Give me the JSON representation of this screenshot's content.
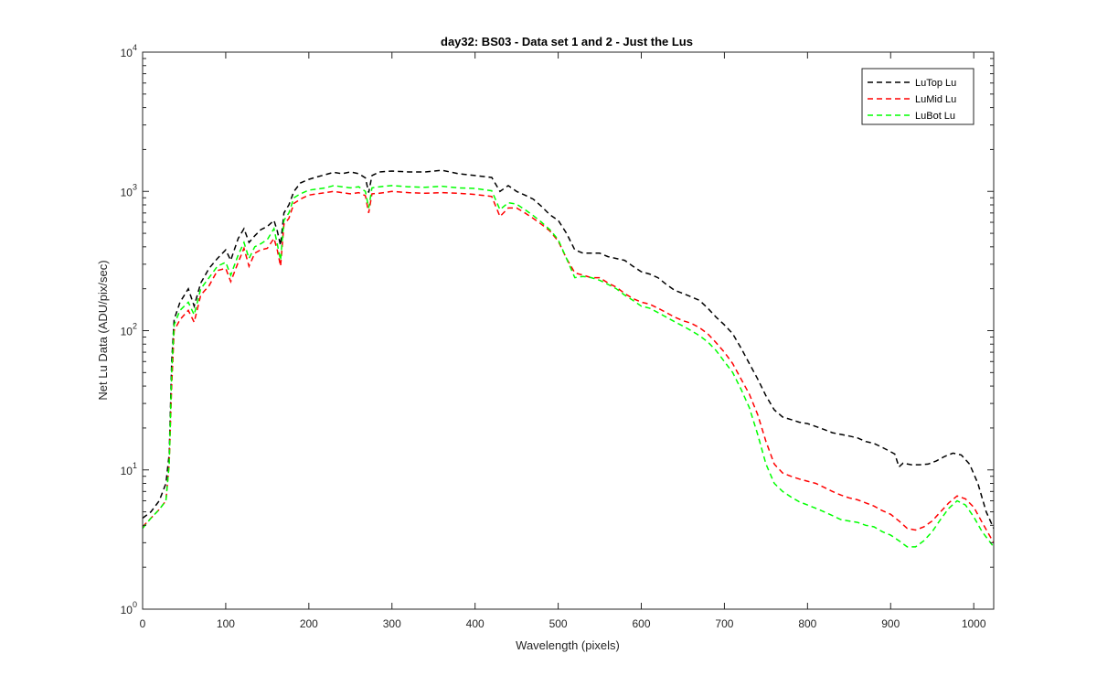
{
  "chart_data": {
    "type": "line",
    "title": "day32: BS03 - Data set 1 and 2 - Just the Lus",
    "xlabel": "Wavelength (pixels)",
    "ylabel": "Net Lu Data (ADU/pix/sec)",
    "xlim": [
      0,
      1024
    ],
    "ylim": [
      1,
      10000
    ],
    "yscale": "log",
    "x_ticks": [
      0,
      100,
      200,
      300,
      400,
      500,
      600,
      700,
      800,
      900,
      1000
    ],
    "x_tick_labels": [
      "0",
      "100",
      "200",
      "300",
      "400",
      "500",
      "600",
      "700",
      "800",
      "900",
      "1000"
    ],
    "y_ticks": [
      1,
      10,
      100,
      1000,
      10000
    ],
    "y_tick_labels": [
      {
        "base": "10",
        "exp": "0"
      },
      {
        "base": "10",
        "exp": "1"
      },
      {
        "base": "10",
        "exp": "2"
      },
      {
        "base": "10",
        "exp": "3"
      },
      {
        "base": "10",
        "exp": "4"
      }
    ],
    "grid": false,
    "legend_position": "top-right",
    "line_style": "dashed",
    "series": [
      {
        "name": "LuTop  Lu",
        "color": "#000000",
        "points": [
          [
            0,
            4.5
          ],
          [
            10,
            5
          ],
          [
            20,
            6
          ],
          [
            28,
            8
          ],
          [
            32,
            13
          ],
          [
            35,
            60
          ],
          [
            38,
            120
          ],
          [
            45,
            160
          ],
          [
            55,
            200
          ],
          [
            62,
            150
          ],
          [
            70,
            220
          ],
          [
            80,
            280
          ],
          [
            90,
            330
          ],
          [
            100,
            380
          ],
          [
            106,
            320
          ],
          [
            115,
            460
          ],
          [
            122,
            540
          ],
          [
            128,
            430
          ],
          [
            135,
            480
          ],
          [
            142,
            530
          ],
          [
            150,
            560
          ],
          [
            158,
            620
          ],
          [
            162,
            520
          ],
          [
            166,
            410
          ],
          [
            170,
            700
          ],
          [
            176,
            800
          ],
          [
            182,
            1000
          ],
          [
            190,
            1150
          ],
          [
            200,
            1220
          ],
          [
            210,
            1270
          ],
          [
            220,
            1320
          ],
          [
            230,
            1370
          ],
          [
            240,
            1340
          ],
          [
            250,
            1380
          ],
          [
            260,
            1340
          ],
          [
            268,
            1250
          ],
          [
            272,
            980
          ],
          [
            276,
            1300
          ],
          [
            285,
            1380
          ],
          [
            300,
            1400
          ],
          [
            320,
            1380
          ],
          [
            340,
            1380
          ],
          [
            360,
            1420
          ],
          [
            380,
            1340
          ],
          [
            400,
            1300
          ],
          [
            420,
            1260
          ],
          [
            430,
            1000
          ],
          [
            440,
            1100
          ],
          [
            450,
            1000
          ],
          [
            460,
            940
          ],
          [
            470,
            880
          ],
          [
            480,
            780
          ],
          [
            490,
            680
          ],
          [
            500,
            620
          ],
          [
            510,
            500
          ],
          [
            520,
            380
          ],
          [
            530,
            360
          ],
          [
            540,
            360
          ],
          [
            550,
            360
          ],
          [
            560,
            340
          ],
          [
            570,
            330
          ],
          [
            580,
            320
          ],
          [
            590,
            290
          ],
          [
            600,
            265
          ],
          [
            610,
            255
          ],
          [
            620,
            240
          ],
          [
            630,
            215
          ],
          [
            640,
            195
          ],
          [
            650,
            185
          ],
          [
            660,
            175
          ],
          [
            670,
            165
          ],
          [
            680,
            145
          ],
          [
            690,
            125
          ],
          [
            700,
            110
          ],
          [
            710,
            95
          ],
          [
            720,
            75
          ],
          [
            730,
            58
          ],
          [
            740,
            45
          ],
          [
            750,
            34
          ],
          [
            760,
            27
          ],
          [
            770,
            24
          ],
          [
            780,
            23
          ],
          [
            790,
            22
          ],
          [
            800,
            21.5
          ],
          [
            810,
            20.5
          ],
          [
            820,
            19.5
          ],
          [
            830,
            18.5
          ],
          [
            840,
            18
          ],
          [
            850,
            17.5
          ],
          [
            860,
            17
          ],
          [
            870,
            16
          ],
          [
            880,
            15.5
          ],
          [
            890,
            14.5
          ],
          [
            900,
            13.5
          ],
          [
            905,
            13
          ],
          [
            910,
            10.5
          ],
          [
            915,
            11.2
          ],
          [
            925,
            10.9
          ],
          [
            935,
            10.9
          ],
          [
            945,
            11
          ],
          [
            955,
            11.6
          ],
          [
            965,
            12.5
          ],
          [
            975,
            13.2
          ],
          [
            985,
            12.8
          ],
          [
            995,
            11
          ],
          [
            1005,
            8
          ],
          [
            1015,
            5
          ],
          [
            1024,
            3.8
          ]
        ]
      },
      {
        "name": "LuMid  Lu",
        "color": "#ff0000",
        "points": [
          [
            0,
            3.9
          ],
          [
            10,
            4.5
          ],
          [
            20,
            5.2
          ],
          [
            28,
            6
          ],
          [
            32,
            11
          ],
          [
            35,
            40
          ],
          [
            38,
            100
          ],
          [
            45,
            120
          ],
          [
            55,
            140
          ],
          [
            62,
            115
          ],
          [
            70,
            180
          ],
          [
            80,
            210
          ],
          [
            90,
            270
          ],
          [
            100,
            280
          ],
          [
            106,
            225
          ],
          [
            115,
            310
          ],
          [
            122,
            390
          ],
          [
            128,
            290
          ],
          [
            135,
            360
          ],
          [
            142,
            380
          ],
          [
            150,
            390
          ],
          [
            158,
            460
          ],
          [
            162,
            380
          ],
          [
            166,
            290
          ],
          [
            170,
            580
          ],
          [
            176,
            640
          ],
          [
            182,
            820
          ],
          [
            190,
            880
          ],
          [
            200,
            940
          ],
          [
            210,
            960
          ],
          [
            220,
            980
          ],
          [
            230,
            1000
          ],
          [
            240,
            980
          ],
          [
            250,
            960
          ],
          [
            260,
            980
          ],
          [
            268,
            930
          ],
          [
            272,
            700
          ],
          [
            276,
            960
          ],
          [
            285,
            970
          ],
          [
            300,
            1000
          ],
          [
            320,
            980
          ],
          [
            340,
            970
          ],
          [
            360,
            980
          ],
          [
            380,
            970
          ],
          [
            400,
            950
          ],
          [
            420,
            920
          ],
          [
            430,
            660
          ],
          [
            440,
            760
          ],
          [
            450,
            760
          ],
          [
            460,
            700
          ],
          [
            470,
            640
          ],
          [
            480,
            580
          ],
          [
            490,
            520
          ],
          [
            500,
            440
          ],
          [
            510,
            330
          ],
          [
            520,
            260
          ],
          [
            530,
            250
          ],
          [
            540,
            240
          ],
          [
            550,
            240
          ],
          [
            560,
            220
          ],
          [
            570,
            205
          ],
          [
            580,
            185
          ],
          [
            590,
            170
          ],
          [
            600,
            160
          ],
          [
            610,
            155
          ],
          [
            620,
            145
          ],
          [
            630,
            135
          ],
          [
            640,
            125
          ],
          [
            650,
            118
          ],
          [
            660,
            113
          ],
          [
            670,
            105
          ],
          [
            680,
            95
          ],
          [
            690,
            82
          ],
          [
            700,
            70
          ],
          [
            710,
            58
          ],
          [
            720,
            45
          ],
          [
            730,
            35
          ],
          [
            740,
            25
          ],
          [
            750,
            16
          ],
          [
            760,
            11
          ],
          [
            770,
            9.5
          ],
          [
            780,
            9
          ],
          [
            790,
            8.6
          ],
          [
            800,
            8.3
          ],
          [
            810,
            8
          ],
          [
            820,
            7.5
          ],
          [
            830,
            7
          ],
          [
            840,
            6.6
          ],
          [
            850,
            6.3
          ],
          [
            860,
            6.1
          ],
          [
            870,
            5.8
          ],
          [
            880,
            5.5
          ],
          [
            890,
            5.1
          ],
          [
            900,
            4.8
          ],
          [
            910,
            4.3
          ],
          [
            920,
            3.8
          ],
          [
            930,
            3.7
          ],
          [
            940,
            3.9
          ],
          [
            950,
            4.3
          ],
          [
            960,
            5
          ],
          [
            970,
            5.8
          ],
          [
            980,
            6.5
          ],
          [
            990,
            6.2
          ],
          [
            1000,
            5.4
          ],
          [
            1010,
            4.2
          ],
          [
            1024,
            3
          ]
        ]
      },
      {
        "name": "LuBot  Lu",
        "color": "#00ff00",
        "points": [
          [
            0,
            3.8
          ],
          [
            10,
            4.5
          ],
          [
            20,
            5.2
          ],
          [
            28,
            6
          ],
          [
            32,
            11
          ],
          [
            35,
            50
          ],
          [
            38,
            110
          ],
          [
            45,
            140
          ],
          [
            55,
            160
          ],
          [
            62,
            130
          ],
          [
            70,
            200
          ],
          [
            80,
            240
          ],
          [
            90,
            290
          ],
          [
            100,
            310
          ],
          [
            106,
            250
          ],
          [
            115,
            350
          ],
          [
            122,
            430
          ],
          [
            128,
            330
          ],
          [
            135,
            400
          ],
          [
            142,
            420
          ],
          [
            150,
            450
          ],
          [
            158,
            540
          ],
          [
            162,
            420
          ],
          [
            166,
            320
          ],
          [
            170,
            620
          ],
          [
            176,
            700
          ],
          [
            182,
            900
          ],
          [
            190,
            960
          ],
          [
            200,
            1020
          ],
          [
            210,
            1040
          ],
          [
            220,
            1060
          ],
          [
            230,
            1100
          ],
          [
            240,
            1080
          ],
          [
            250,
            1060
          ],
          [
            260,
            1080
          ],
          [
            268,
            1000
          ],
          [
            272,
            760
          ],
          [
            276,
            1060
          ],
          [
            285,
            1080
          ],
          [
            300,
            1100
          ],
          [
            320,
            1080
          ],
          [
            340,
            1070
          ],
          [
            360,
            1090
          ],
          [
            380,
            1060
          ],
          [
            400,
            1050
          ],
          [
            420,
            1010
          ],
          [
            430,
            740
          ],
          [
            440,
            830
          ],
          [
            450,
            810
          ],
          [
            460,
            740
          ],
          [
            470,
            670
          ],
          [
            480,
            600
          ],
          [
            490,
            530
          ],
          [
            500,
            450
          ],
          [
            510,
            330
          ],
          [
            520,
            240
          ],
          [
            530,
            245
          ],
          [
            540,
            240
          ],
          [
            550,
            230
          ],
          [
            560,
            215
          ],
          [
            570,
            200
          ],
          [
            580,
            180
          ],
          [
            590,
            165
          ],
          [
            600,
            150
          ],
          [
            610,
            145
          ],
          [
            620,
            135
          ],
          [
            630,
            125
          ],
          [
            640,
            116
          ],
          [
            650,
            108
          ],
          [
            660,
            100
          ],
          [
            670,
            92
          ],
          [
            680,
            83
          ],
          [
            690,
            72
          ],
          [
            700,
            60
          ],
          [
            710,
            50
          ],
          [
            720,
            38
          ],
          [
            730,
            28
          ],
          [
            740,
            18
          ],
          [
            750,
            11
          ],
          [
            760,
            8
          ],
          [
            770,
            7
          ],
          [
            780,
            6.4
          ],
          [
            790,
            5.9
          ],
          [
            800,
            5.6
          ],
          [
            810,
            5.3
          ],
          [
            820,
            5
          ],
          [
            830,
            4.7
          ],
          [
            840,
            4.4
          ],
          [
            850,
            4.3
          ],
          [
            860,
            4.2
          ],
          [
            870,
            4
          ],
          [
            880,
            3.9
          ],
          [
            890,
            3.6
          ],
          [
            900,
            3.4
          ],
          [
            910,
            3.1
          ],
          [
            920,
            2.8
          ],
          [
            930,
            2.8
          ],
          [
            940,
            3.1
          ],
          [
            950,
            3.6
          ],
          [
            960,
            4.4
          ],
          [
            970,
            5.3
          ],
          [
            980,
            6
          ],
          [
            990,
            5.6
          ],
          [
            1000,
            4.6
          ],
          [
            1010,
            3.6
          ],
          [
            1024,
            2.8
          ]
        ]
      }
    ]
  }
}
